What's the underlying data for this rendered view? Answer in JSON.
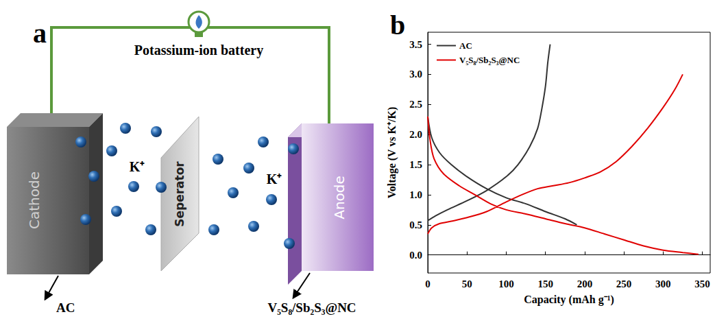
{
  "diagram": {
    "panel_label": "a",
    "title": "Potassium-ion battery",
    "cathode": {
      "label": "Cathode",
      "material": "AC"
    },
    "separator": "Seperator",
    "anode": {
      "label": "Anode",
      "material": "V₅S₈/Sb₂S₃@NC"
    },
    "ion_labels": [
      "K⁺",
      "K⁺"
    ]
  },
  "chart_data": {
    "panel_label": "b",
    "type": "line",
    "x_label": "Capacity (mAh g⁻¹)",
    "y_label": "Voltage (V vs K⁺/K)",
    "xlim": [
      0,
      360
    ],
    "xticks": [
      0,
      50,
      100,
      150,
      200,
      250,
      300,
      350
    ],
    "ylim": [
      -0.3,
      3.7
    ],
    "yticks": [
      {
        "value": 0,
        "label": "0.0"
      },
      0.5,
      {
        "value": 1,
        "label": "1.0"
      },
      1.5,
      {
        "value": 2,
        "label": "2.0"
      },
      2.5,
      {
        "value": 3,
        "label": "3.0"
      },
      3.5
    ],
    "grid": false,
    "legend": "upper left",
    "series": [
      {
        "name": "AC",
        "color": "#333333",
        "x": [
          0,
          5,
          15,
          30,
          50,
          75,
          100,
          125,
          150,
          175,
          190,
          null,
          0,
          10,
          25,
          50,
          75,
          100,
          115,
          130,
          140,
          145,
          150,
          153,
          156
        ],
        "values": [
          2.3,
          1.95,
          1.7,
          1.5,
          1.3,
          1.1,
          0.95,
          0.85,
          0.72,
          0.6,
          0.5,
          null,
          0.57,
          0.65,
          0.75,
          0.9,
          1.07,
          1.3,
          1.5,
          1.8,
          2.1,
          2.4,
          2.8,
          3.2,
          3.5
        ]
      },
      {
        "name": "V₅S₈/Sb₂S₃@NC",
        "color": "#e00000",
        "x": [
          0,
          3,
          8,
          20,
          40,
          60,
          80,
          100,
          125,
          150,
          175,
          200,
          225,
          250,
          275,
          300,
          325,
          345,
          null,
          0,
          5,
          15,
          30,
          50,
          75,
          100,
          120,
          140,
          160,
          180,
          200,
          220,
          240,
          260,
          280,
          300,
          315,
          325
        ],
        "values": [
          2.3,
          1.9,
          1.6,
          1.35,
          1.15,
          1.0,
          0.85,
          0.75,
          0.68,
          0.6,
          0.52,
          0.45,
          0.35,
          0.25,
          0.15,
          0.08,
          0.04,
          0.01,
          null,
          0.35,
          0.45,
          0.52,
          0.56,
          0.62,
          0.72,
          0.88,
          1.0,
          1.1,
          1.15,
          1.2,
          1.28,
          1.38,
          1.55,
          1.8,
          2.1,
          2.45,
          2.75,
          3.0
        ]
      }
    ]
  }
}
